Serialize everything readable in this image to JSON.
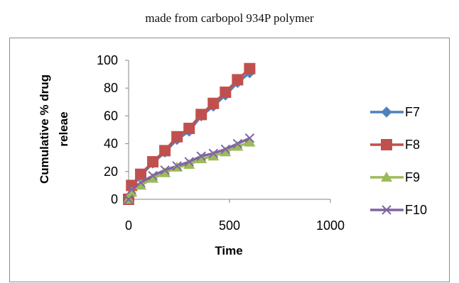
{
  "caption": "made from carbopol 934P polymer",
  "chart_data": {
    "type": "line",
    "title": "",
    "xlabel": "Time",
    "ylabel_lines": [
      "Cumulative % drug",
      "releae"
    ],
    "xlim": [
      0,
      1000
    ],
    "ylim": [
      0,
      100
    ],
    "xticks": [
      0,
      500,
      1000
    ],
    "yticks": [
      0,
      20,
      40,
      60,
      80,
      100
    ],
    "grid": false,
    "legend": "right",
    "series": [
      {
        "name": "F7",
        "color": "#4F81BD",
        "marker": "diamond",
        "points": [
          [
            0,
            0
          ],
          [
            15,
            9
          ],
          [
            60,
            17
          ],
          [
            120,
            26
          ],
          [
            180,
            34
          ],
          [
            240,
            43
          ],
          [
            300,
            49
          ],
          [
            360,
            60
          ],
          [
            420,
            67
          ],
          [
            480,
            75
          ],
          [
            540,
            84
          ],
          [
            600,
            91
          ]
        ]
      },
      {
        "name": "F8",
        "color": "#C0504D",
        "marker": "square",
        "points": [
          [
            0,
            0
          ],
          [
            15,
            10
          ],
          [
            60,
            18
          ],
          [
            120,
            27
          ],
          [
            180,
            35
          ],
          [
            240,
            45
          ],
          [
            300,
            51
          ],
          [
            360,
            61
          ],
          [
            420,
            69
          ],
          [
            480,
            77
          ],
          [
            540,
            86
          ],
          [
            600,
            94
          ]
        ]
      },
      {
        "name": "F9",
        "color": "#9BBB59",
        "marker": "triangle",
        "points": [
          [
            0,
            0
          ],
          [
            15,
            5
          ],
          [
            60,
            10
          ],
          [
            120,
            15
          ],
          [
            180,
            19
          ],
          [
            240,
            23
          ],
          [
            300,
            25
          ],
          [
            360,
            29
          ],
          [
            420,
            31
          ],
          [
            480,
            34
          ],
          [
            540,
            38
          ],
          [
            600,
            41
          ]
        ]
      },
      {
        "name": "F10",
        "color": "#8064A2",
        "marker": "x",
        "points": [
          [
            0,
            0
          ],
          [
            15,
            7
          ],
          [
            60,
            12
          ],
          [
            120,
            17
          ],
          [
            180,
            21
          ],
          [
            240,
            24
          ],
          [
            300,
            27
          ],
          [
            360,
            31
          ],
          [
            420,
            33
          ],
          [
            480,
            36
          ],
          [
            540,
            40
          ],
          [
            600,
            44
          ]
        ]
      }
    ]
  }
}
